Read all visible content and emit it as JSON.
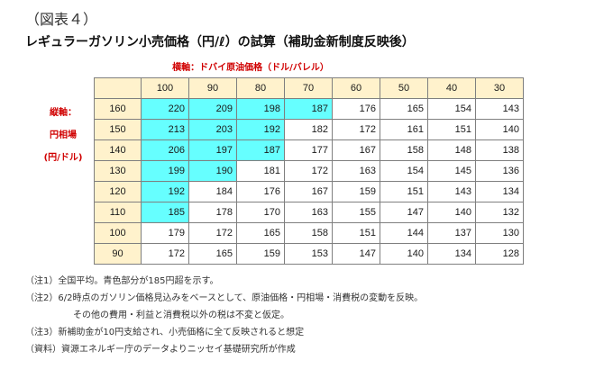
{
  "figure_number": "（図表４）",
  "title": "レギュラーガソリン小売価格（円/ℓ）の試算（補助金新制度反映後）",
  "horizontal_axis_label": "横軸：ドバイ原油価格（ドル/バレル）",
  "vertical_axis_label": [
    "縦軸：",
    "円相場",
    "(円/ドル)"
  ],
  "highlight_color": "#66ffff",
  "header_fill_color": "#fff2cc",
  "chart_data": {
    "type": "table",
    "columns": [
      "100",
      "90",
      "80",
      "70",
      "60",
      "50",
      "40",
      "30"
    ],
    "rows": [
      {
        "label": "160",
        "values": [
          "220",
          "209",
          "198",
          "187",
          "176",
          "165",
          "154",
          "143"
        ],
        "highlighted": [
          true,
          true,
          true,
          true,
          false,
          false,
          false,
          false
        ]
      },
      {
        "label": "150",
        "values": [
          "213",
          "203",
          "192",
          "182",
          "172",
          "161",
          "151",
          "140"
        ],
        "highlighted": [
          true,
          true,
          true,
          false,
          false,
          false,
          false,
          false
        ]
      },
      {
        "label": "140",
        "values": [
          "206",
          "197",
          "187",
          "177",
          "167",
          "158",
          "148",
          "138"
        ],
        "highlighted": [
          true,
          true,
          true,
          false,
          false,
          false,
          false,
          false
        ]
      },
      {
        "label": "130",
        "values": [
          "199",
          "190",
          "181",
          "172",
          "163",
          "154",
          "145",
          "136"
        ],
        "highlighted": [
          true,
          true,
          false,
          false,
          false,
          false,
          false,
          false
        ]
      },
      {
        "label": "120",
        "values": [
          "192",
          "184",
          "176",
          "167",
          "159",
          "151",
          "143",
          "134"
        ],
        "highlighted": [
          true,
          false,
          false,
          false,
          false,
          false,
          false,
          false
        ]
      },
      {
        "label": "110",
        "values": [
          "185",
          "178",
          "170",
          "163",
          "155",
          "147",
          "140",
          "132"
        ],
        "highlighted": [
          true,
          false,
          false,
          false,
          false,
          false,
          false,
          false
        ]
      },
      {
        "label": "100",
        "values": [
          "179",
          "172",
          "165",
          "158",
          "151",
          "144",
          "137",
          "130"
        ],
        "highlighted": [
          false,
          false,
          false,
          false,
          false,
          false,
          false,
          false
        ]
      },
      {
        "label": "90",
        "values": [
          "172",
          "165",
          "159",
          "153",
          "147",
          "140",
          "134",
          "128"
        ],
        "highlighted": [
          false,
          false,
          false,
          false,
          false,
          false,
          false,
          false
        ]
      }
    ]
  },
  "notes": [
    "（注1）全国平均。青色部分が185円超を示す。",
    "（注2）6/2時点のガソリン価格見込みをベースとして、原油価格・円相場・消費税の変動を反映。",
    "その他の費用・利益と消費税以外の税は不変と仮定。",
    "（注3）新補助金が10円支給され、小売価格に全て反映されると想定",
    "（資料）資源エネルギー庁のデータよりニッセイ基礎研究所が作成"
  ]
}
